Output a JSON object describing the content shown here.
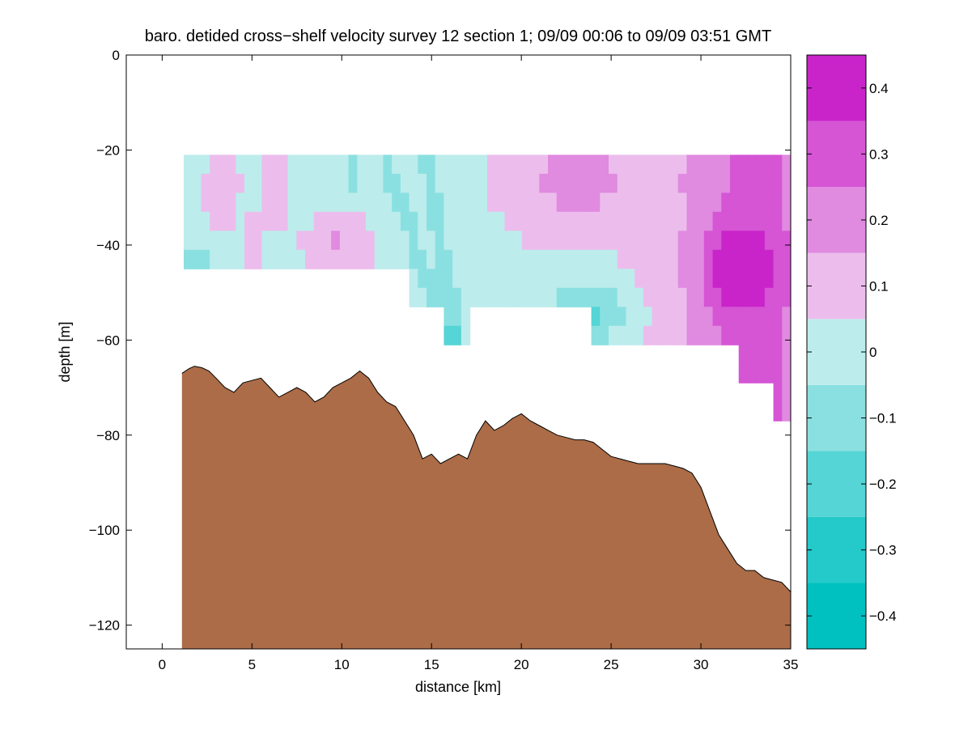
{
  "chart_data": {
    "type": "heatmap",
    "title": "baro. detided cross−shelf velocity survey 12 section 1; 09/09 00:06 to 09/09 03:51 GMT",
    "xlabel": "distance [km]",
    "ylabel": "depth [m]",
    "xlim": [
      -2,
      35
    ],
    "ylim": [
      -125,
      0
    ],
    "xticks": [
      0,
      5,
      10,
      15,
      20,
      25,
      30,
      35
    ],
    "yticks": [
      0,
      -20,
      -40,
      -60,
      -80,
      -100,
      -120
    ],
    "xtick_labels": [
      "0",
      "5",
      "10",
      "15",
      "20",
      "25",
      "30",
      "35"
    ],
    "ytick_labels": [
      "0",
      "−20",
      "−40",
      "−60",
      "−80",
      "−100",
      "−120"
    ],
    "grid": false,
    "colorbar": {
      "levels": [
        -0.45,
        -0.35,
        -0.25,
        -0.15,
        -0.05,
        0.05,
        0.15,
        0.25,
        0.35,
        0.45
      ],
      "colors": [
        "#00c0c0",
        "#24c9c9",
        "#55d5d5",
        "#8ae0e0",
        "#bdecec",
        "#ecbdec",
        "#e08ae0",
        "#d555d5",
        "#c924c9"
      ],
      "tick_values": [
        0.4,
        0.3,
        0.2,
        0.1,
        0,
        -0.1,
        -0.2,
        -0.3,
        -0.4
      ],
      "tick_labels": [
        "0.4",
        "0.3",
        "0.2",
        "0.1",
        "0",
        "−0.1",
        "−0.2",
        "−0.3",
        "−0.4"
      ]
    },
    "bathymetry": {
      "fill_color": "#ab6c47",
      "x": [
        1.1,
        1.3,
        1.5,
        1.8,
        2.2,
        2.6,
        3.0,
        3.5,
        4.0,
        4.5,
        5.0,
        5.5,
        6.0,
        6.5,
        7.0,
        7.5,
        8.0,
        8.5,
        9.0,
        9.5,
        10.0,
        10.5,
        11.0,
        11.5,
        12.0,
        12.5,
        13.0,
        13.5,
        14.0,
        14.5,
        15.0,
        15.5,
        16.0,
        16.5,
        17.0,
        17.5,
        18.0,
        18.5,
        19.0,
        19.5,
        20.0,
        20.5,
        21.0,
        21.5,
        22.0,
        22.5,
        23.0,
        23.5,
        24.0,
        24.5,
        25.0,
        25.5,
        26.0,
        26.5,
        27.0,
        27.5,
        28.0,
        28.5,
        29.0,
        29.5,
        30.0,
        30.5,
        31.0,
        31.5,
        32.0,
        32.5,
        33.0,
        33.5,
        34.0,
        34.5,
        35.0
      ],
      "depth": [
        -67,
        -66.5,
        -66,
        -65.5,
        -65.8,
        -66.5,
        -68,
        -70,
        -71,
        -69,
        -68.5,
        -68,
        -70,
        -72,
        -71,
        -70,
        -71,
        -73,
        -72,
        -70,
        -69,
        -68,
        -66.5,
        -68,
        -71,
        -73,
        -74,
        -77,
        -80,
        -85,
        -84,
        -86,
        -85,
        -84,
        -85,
        -80,
        -77,
        -79,
        -78,
        -76.5,
        -75.5,
        -77,
        -78,
        -79,
        -80,
        -80.5,
        -81,
        -81,
        -81.5,
        -83,
        -84.5,
        -85,
        -85.5,
        -86,
        -86,
        -86,
        -86,
        -86.5,
        -87,
        -88,
        -91,
        -96,
        -101,
        -104,
        -107,
        -108.5,
        -108.5,
        -110,
        -110.5,
        -111,
        -113
      ]
    },
    "velocity_sections": [
      {
        "x_range": [
          1.2,
          13.7
        ],
        "depth_range": [
          -21,
          -45
        ]
      },
      {
        "x_range": [
          13.7,
          15.5
        ],
        "depth_range": [
          -21,
          -53
        ]
      },
      {
        "x_range": [
          15.5,
          17.3
        ],
        "depth_range": [
          -21,
          -61
        ]
      },
      {
        "x_range": [
          17.3,
          23.8
        ],
        "depth_range": [
          -21,
          -53
        ]
      },
      {
        "x_range": [
          23.8,
          32.0
        ],
        "depth_range": [
          -21,
          -61
        ]
      },
      {
        "x_range": [
          32.0,
          33.9
        ],
        "depth_range": [
          -21,
          -69
        ]
      },
      {
        "x_range": [
          33.9,
          34.9
        ],
        "depth_range": [
          -21,
          -77
        ]
      },
      {
        "x_range": [
          34.9,
          35.0
        ],
        "depth_range": [
          -21,
          -85
        ]
      }
    ]
  }
}
